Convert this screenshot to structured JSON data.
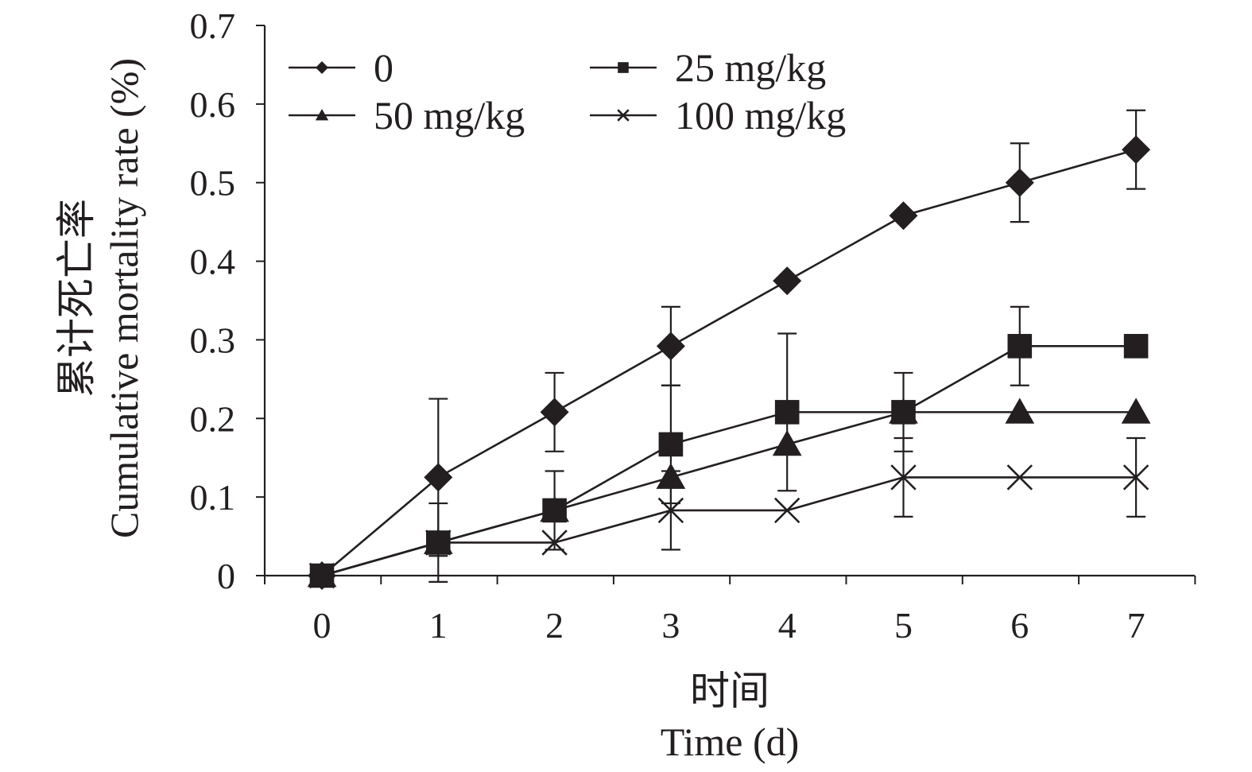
{
  "chart_data": {
    "type": "line",
    "title": "",
    "xlabel_cn": "时间",
    "xlabel": "Time (d)",
    "ylabel_cn": "累计死亡率",
    "ylabel": "Cumulative mortality rate (%)",
    "x": [
      0,
      1,
      2,
      3,
      4,
      5,
      6,
      7
    ],
    "xticks": [
      "0",
      "1",
      "2",
      "3",
      "4",
      "5",
      "6",
      "7"
    ],
    "yticks": [
      "0",
      "0.1",
      "0.2",
      "0.3",
      "0.4",
      "0.5",
      "0.6",
      "0.7"
    ],
    "ylim": [
      0,
      0.7
    ],
    "grid": false,
    "legend_position": "top-left",
    "series": [
      {
        "name": "0",
        "marker": "diamond",
        "values": [
          0,
          0.125,
          0.208,
          0.292,
          0.375,
          0.458,
          0.5,
          0.542
        ],
        "error": [
          0,
          0.1,
          0.05,
          0.05,
          0,
          0,
          0.05,
          0.05
        ]
      },
      {
        "name": "25 mg/kg",
        "marker": "square",
        "values": [
          0,
          0.042,
          0.083,
          0.167,
          0.208,
          0.208,
          0.292,
          0.292
        ],
        "error": [
          0,
          0.05,
          0.05,
          0.075,
          0.1,
          0.05,
          0.05,
          0
        ]
      },
      {
        "name": "50 mg/kg",
        "marker": "triangle",
        "values": [
          0,
          0.042,
          0.083,
          0.125,
          0.167,
          0.208,
          0.208,
          0.208
        ],
        "error": [
          0,
          0,
          0,
          0,
          0,
          0,
          0,
          0
        ]
      },
      {
        "name": "100 mg/kg",
        "marker": "cross",
        "values": [
          0,
          0.042,
          0.042,
          0.083,
          0.083,
          0.125,
          0.125,
          0.125
        ],
        "error": [
          0,
          0,
          0,
          0.05,
          0,
          0.05,
          0,
          0.05
        ]
      }
    ],
    "colors": {
      "ink": "#231f20"
    }
  }
}
